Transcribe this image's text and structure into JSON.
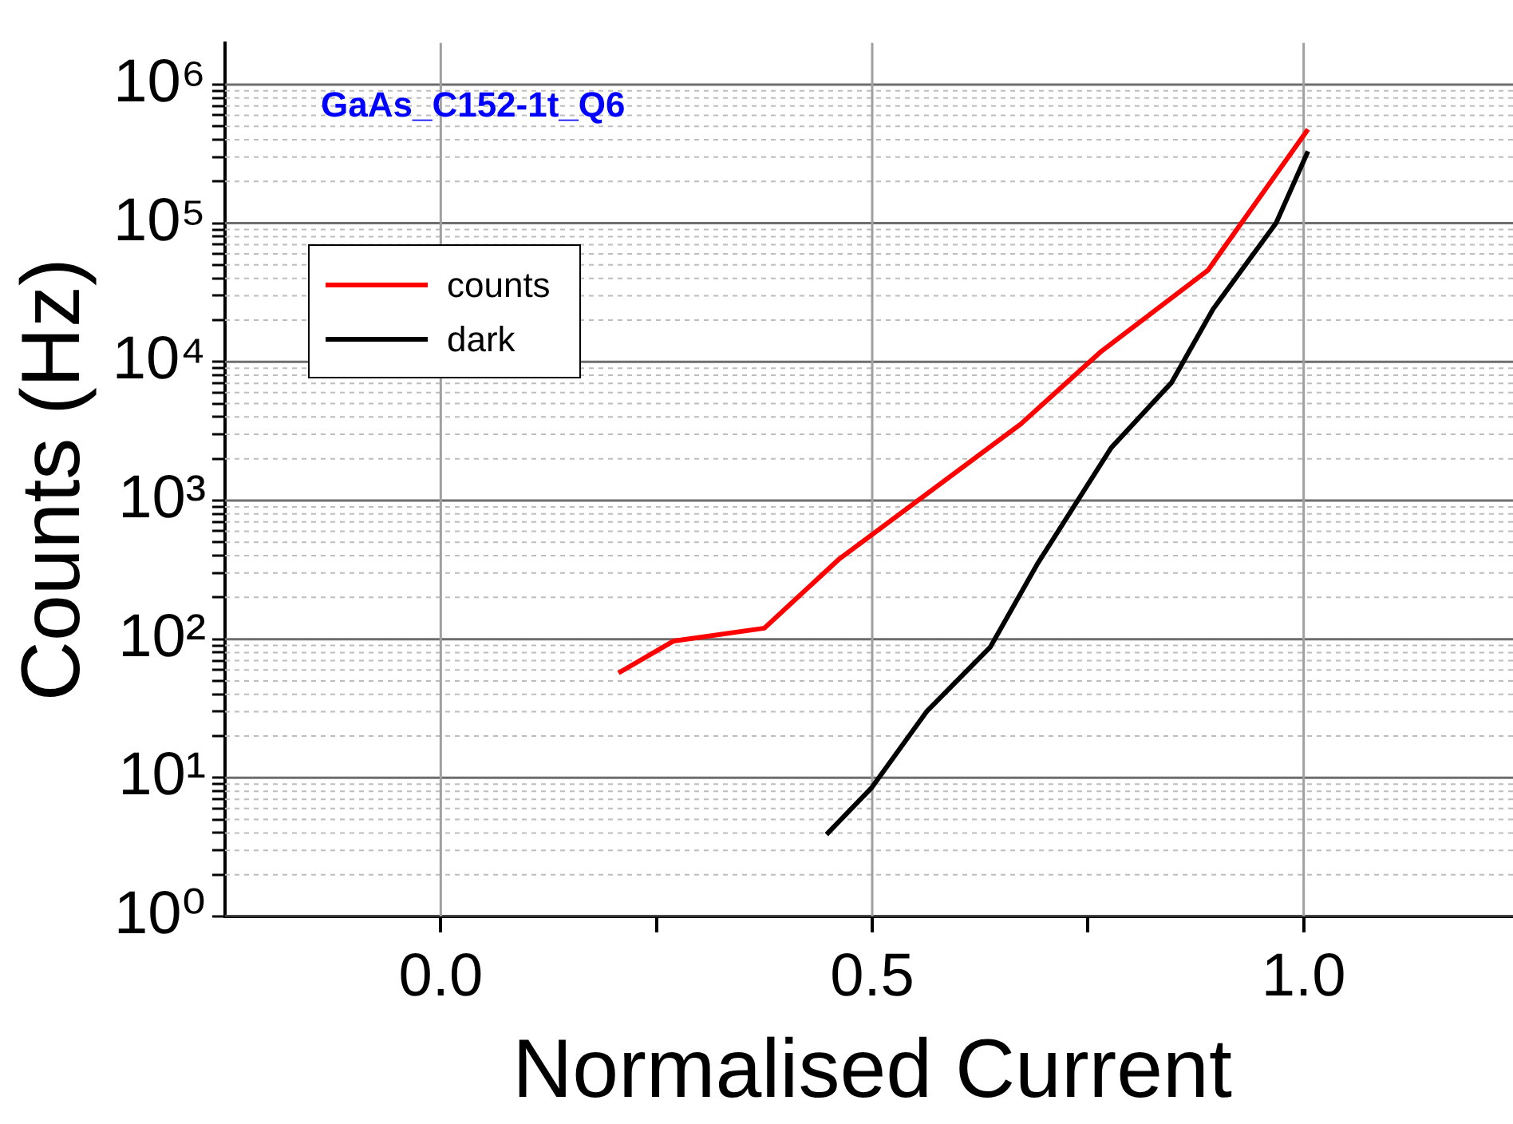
{
  "chart_data": {
    "type": "line",
    "title": "GaAs_C152-1t_Q6",
    "xlabel": "Normalised Current",
    "ylabel": "Counts (Hz)",
    "log": "y",
    "grid": true,
    "legend": "top left",
    "marker": "none",
    "line_style": "solid",
    "xlim": [
      -0.25,
      1.25
    ],
    "xticks": [
      {
        "value": 0,
        "label": "0.0"
      },
      {
        "value": 0.25,
        "label": null
      },
      {
        "value": 0.5,
        "label": "0.5"
      },
      {
        "value": 0.75,
        "label": null
      },
      {
        "value": 1,
        "label": "1.0"
      }
    ],
    "ylim": [
      1,
      2000000
    ],
    "yticks": [
      {
        "value": 1,
        "label": "10⁰"
      },
      {
        "value": 2,
        "label": null
      },
      {
        "value": 3,
        "label": null
      },
      {
        "value": 4,
        "label": null
      },
      {
        "value": 5,
        "label": null
      },
      {
        "value": 6,
        "label": null
      },
      {
        "value": 7,
        "label": null
      },
      {
        "value": 8,
        "label": null
      },
      {
        "value": 9,
        "label": null
      },
      {
        "value": 10,
        "label": "10¹"
      },
      {
        "value": 20,
        "label": null
      },
      {
        "value": 30,
        "label": null
      },
      {
        "value": 40,
        "label": null
      },
      {
        "value": 50,
        "label": null
      },
      {
        "value": 60,
        "label": null
      },
      {
        "value": 70,
        "label": null
      },
      {
        "value": 80,
        "label": null
      },
      {
        "value": 90,
        "label": null
      },
      {
        "value": 100,
        "label": "10²"
      },
      {
        "value": 200,
        "label": null
      },
      {
        "value": 300,
        "label": null
      },
      {
        "value": 400,
        "label": null
      },
      {
        "value": 500,
        "label": null
      },
      {
        "value": 600,
        "label": null
      },
      {
        "value": 700,
        "label": null
      },
      {
        "value": 800,
        "label": null
      },
      {
        "value": 900,
        "label": null
      },
      {
        "value": 1000,
        "label": "10³"
      },
      {
        "value": 2000,
        "label": null
      },
      {
        "value": 3000,
        "label": null
      },
      {
        "value": 4000,
        "label": null
      },
      {
        "value": 5000,
        "label": null
      },
      {
        "value": 6000,
        "label": null
      },
      {
        "value": 7000,
        "label": null
      },
      {
        "value": 8000,
        "label": null
      },
      {
        "value": 9000,
        "label": null
      },
      {
        "value": 10000,
        "label": "10⁴"
      },
      {
        "value": 20000,
        "label": null
      },
      {
        "value": 30000,
        "label": null
      },
      {
        "value": 40000,
        "label": null
      },
      {
        "value": 50000,
        "label": null
      },
      {
        "value": 60000,
        "label": null
      },
      {
        "value": 70000,
        "label": null
      },
      {
        "value": 80000,
        "label": null
      },
      {
        "value": 90000,
        "label": null
      },
      {
        "value": 100000,
        "label": "10⁵"
      },
      {
        "value": 200000,
        "label": null
      },
      {
        "value": 300000,
        "label": null
      },
      {
        "value": 400000,
        "label": null
      },
      {
        "value": 500000,
        "label": null
      },
      {
        "value": 600000,
        "label": null
      },
      {
        "value": 700000,
        "label": null
      },
      {
        "value": 800000,
        "label": null
      },
      {
        "value": 900000,
        "label": null
      },
      {
        "value": 1000000,
        "label": "10⁶"
      }
    ],
    "series": [
      {
        "name": "counts",
        "color": "#ff0000",
        "x": [
          0.206,
          0.27,
          0.375,
          0.461,
          0.672,
          0.764,
          0.889,
          1.005
        ],
        "values": [
          57,
          97,
          120,
          375,
          3550,
          11700,
          45700,
          475000
        ]
      },
      {
        "name": "dark",
        "color": "#000000",
        "x": [
          0.447,
          0.4995,
          0.563,
          0.637,
          0.691,
          0.777,
          0.847,
          0.895,
          0.968,
          1.005
        ],
        "values": [
          3.9,
          8.5,
          30,
          88,
          345,
          2400,
          7100,
          24000,
          100000,
          330000
        ]
      }
    ]
  }
}
